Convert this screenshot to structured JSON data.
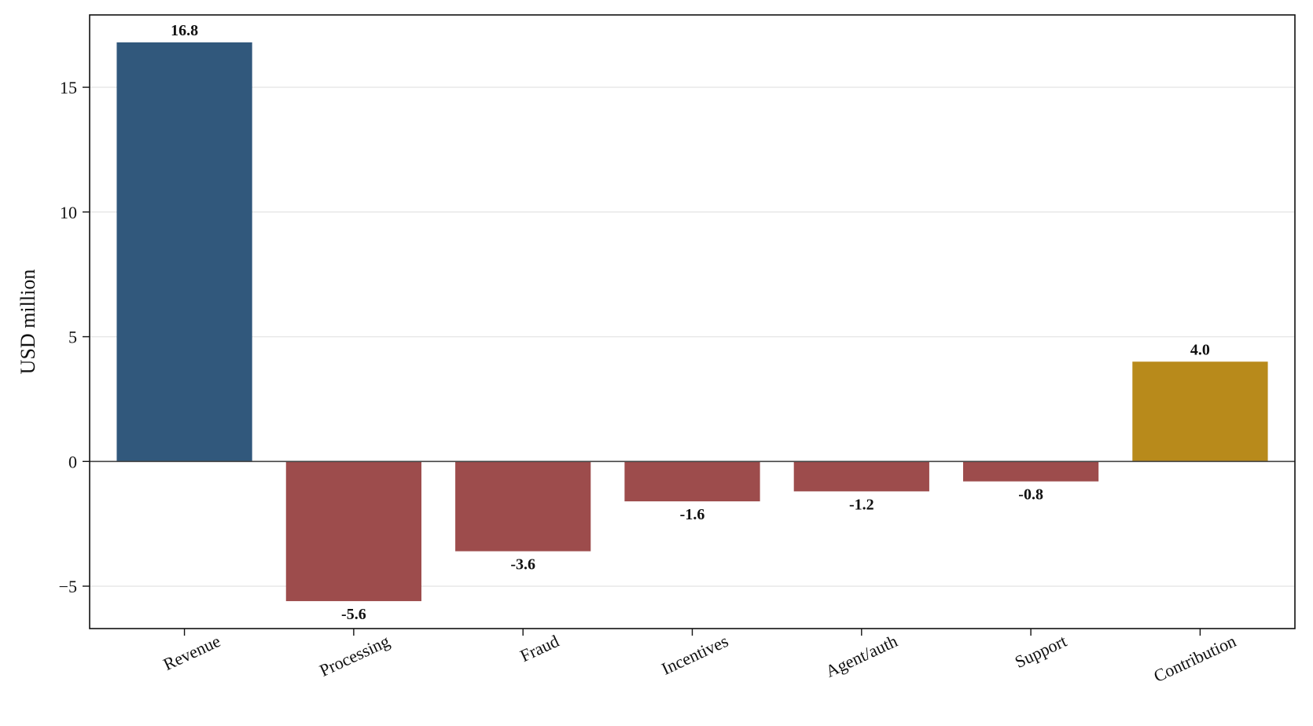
{
  "chart_data": {
    "type": "bar",
    "categories": [
      "Revenue",
      "Processing",
      "Fraud",
      "Incentives",
      "Agent/auth",
      "Support",
      "Contribution"
    ],
    "values": [
      16.8,
      -5.6,
      -3.6,
      -1.6,
      -1.2,
      -0.8,
      4.0
    ],
    "value_labels": [
      "16.8",
      "-5.6",
      "-3.6",
      "-1.6",
      "-1.2",
      "-0.8",
      "4.0"
    ],
    "bar_colors": [
      "#31587c",
      "#9d4c4c",
      "#9d4c4c",
      "#9d4c4c",
      "#9d4c4c",
      "#9d4c4c",
      "#b88a1b"
    ],
    "title": "",
    "xlabel": "",
    "ylabel": "USD million",
    "ylim": [
      -6.7,
      17.9
    ],
    "yticks": [
      -5,
      0,
      5,
      10,
      15
    ],
    "ytick_labels": [
      "−5",
      "0",
      "5",
      "10",
      "15"
    ],
    "grid": "horizontal",
    "zero_line": true,
    "x_tick_rotation": 25
  }
}
